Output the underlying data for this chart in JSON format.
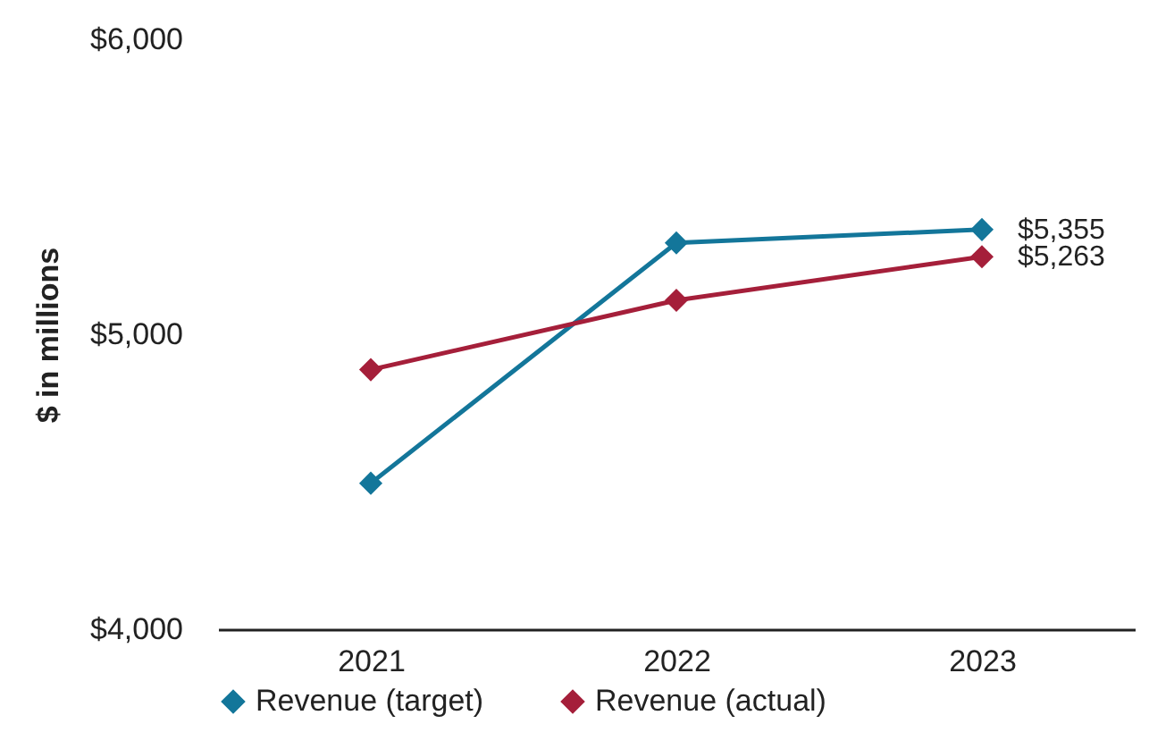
{
  "chart_data": {
    "type": "line",
    "ylabel": "$ in millions",
    "categories": [
      "2021",
      "2022",
      "2023"
    ],
    "series": [
      {
        "name": "Revenue (target)",
        "color": "#13769a",
        "values": [
          4495,
          5310,
          5355
        ],
        "value_labels": [
          null,
          null,
          "$5,355"
        ]
      },
      {
        "name": "Revenue (actual)",
        "color": "#a51f3a",
        "values": [
          4880,
          5115,
          5263
        ],
        "value_labels": [
          null,
          null,
          "$5,263"
        ]
      }
    ],
    "ylim": [
      4000,
      6000
    ],
    "yticks": [
      {
        "value": 4000,
        "label": "$4,000"
      },
      {
        "value": 5000,
        "label": "$5,000"
      },
      {
        "value": 6000,
        "label": "$6,000"
      }
    ],
    "legend": "bottom",
    "marker": "diamond",
    "line_style": "solid",
    "grid": false
  }
}
